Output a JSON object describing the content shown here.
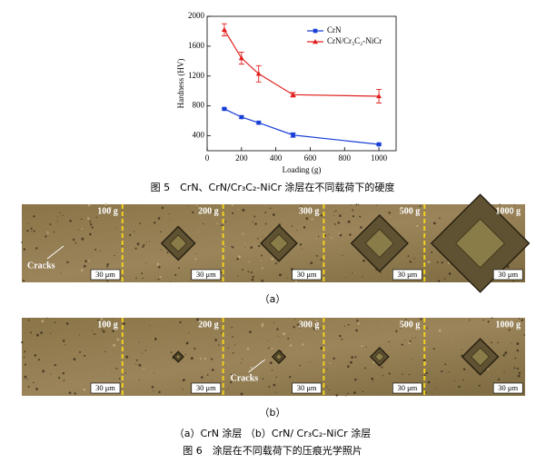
{
  "chart_data": {
    "type": "line",
    "x_label": "Loading (g)",
    "y_label": "Hardness (HV)",
    "x": [
      100,
      200,
      300,
      500,
      1000
    ],
    "series": [
      {
        "name": "CrN",
        "color": "#1a3fd8",
        "marker": "square",
        "values": [
          760,
          650,
          575,
          410,
          285
        ],
        "errors": [
          10,
          15,
          15,
          30,
          10
        ]
      },
      {
        "name": "CrN/Cr₃C₂-NiCr",
        "color": "#e0201f",
        "marker": "triangle",
        "values": [
          1820,
          1440,
          1230,
          950,
          930
        ],
        "errors": [
          80,
          80,
          110,
          30,
          90
        ]
      }
    ],
    "xlim": [
      0,
      1100
    ],
    "ylim": [
      200,
      2000
    ],
    "xticks": [
      0,
      200,
      400,
      600,
      800,
      1000
    ],
    "yticks": [
      400,
      800,
      1200,
      1600,
      2000
    ],
    "legend": "upper right"
  },
  "figure5_caption": "图 5　CrN、CrN/Cr₃C₂-NiCr 涂层在不同载荷下的硬度",
  "panels": [
    {
      "loads": [
        "100 g",
        "200 g",
        "300 g",
        "500 g",
        "1000 g"
      ],
      "scale_bars": [
        "30 μm",
        "30 μm",
        "30 μm",
        "30 μm",
        "30 μm"
      ],
      "annotation": "Cracks",
      "label": "（a）"
    },
    {
      "loads": [
        "100 g",
        "200 g",
        "300 g",
        "500 g",
        "1000 g"
      ],
      "scale_bars": [
        "30 μm",
        "30 μm",
        "30 μm",
        "30 μm",
        "30 μm"
      ],
      "annotation": "Cracks",
      "label": "（b）"
    }
  ],
  "figure6_subcaption": "（a）CrN 涂层 （b）CrN/ Cr₃C₂-NiCr 涂层",
  "figure6_caption": "图 6　涂层在不同载荷下的压痕光学照片"
}
